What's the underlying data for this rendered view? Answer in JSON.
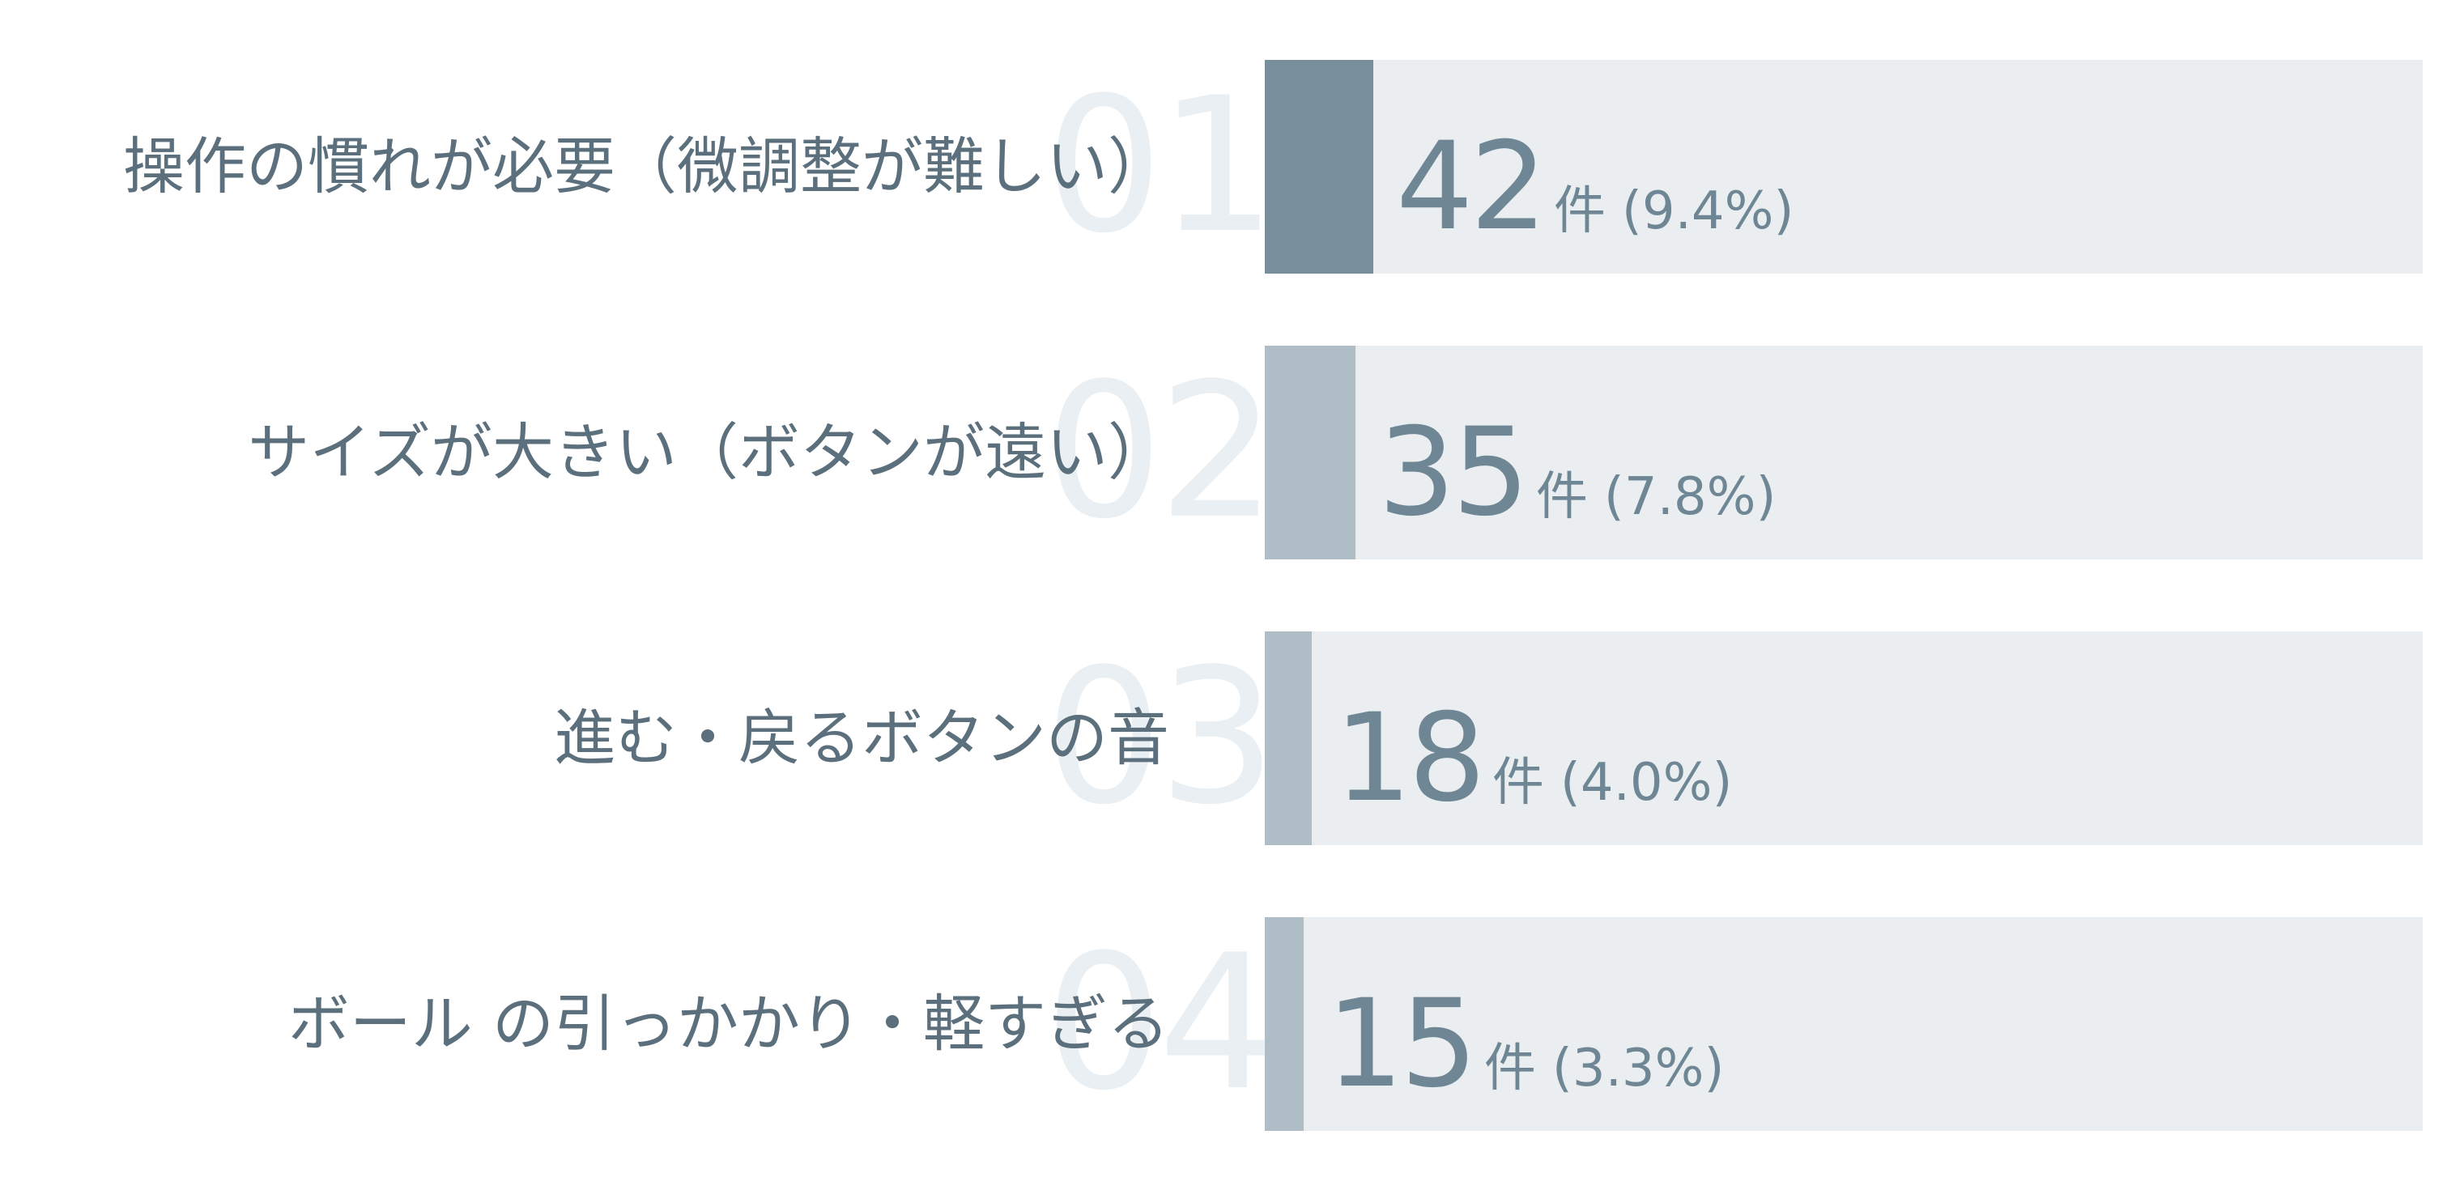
{
  "chart_data": {
    "type": "bar",
    "orientation": "horizontal",
    "categories": [
      "操作の慣れが必要（微調整が難しい）",
      "サイズが大きい（ボタンが遠い）",
      "進む・戻るボタンの音",
      "ボール の引っかかり・軽すぎる"
    ],
    "ranks": [
      "01",
      "02",
      "03",
      "04"
    ],
    "values": [
      42,
      35,
      18,
      15
    ],
    "unit": "件",
    "percent_labels": [
      "(9.4%)",
      "(7.8%)",
      "(4.0%)",
      "(3.3%)"
    ],
    "xlim": [
      0,
      447
    ],
    "grid": false,
    "legend": "none"
  },
  "colors": {
    "highlight_bar": "#788f9b",
    "bar": "#afbec6",
    "track": "#eaeef1",
    "label_text": "#5b6f7c",
    "value_text": "#6f8795",
    "rank_text": "#e9eff3"
  }
}
